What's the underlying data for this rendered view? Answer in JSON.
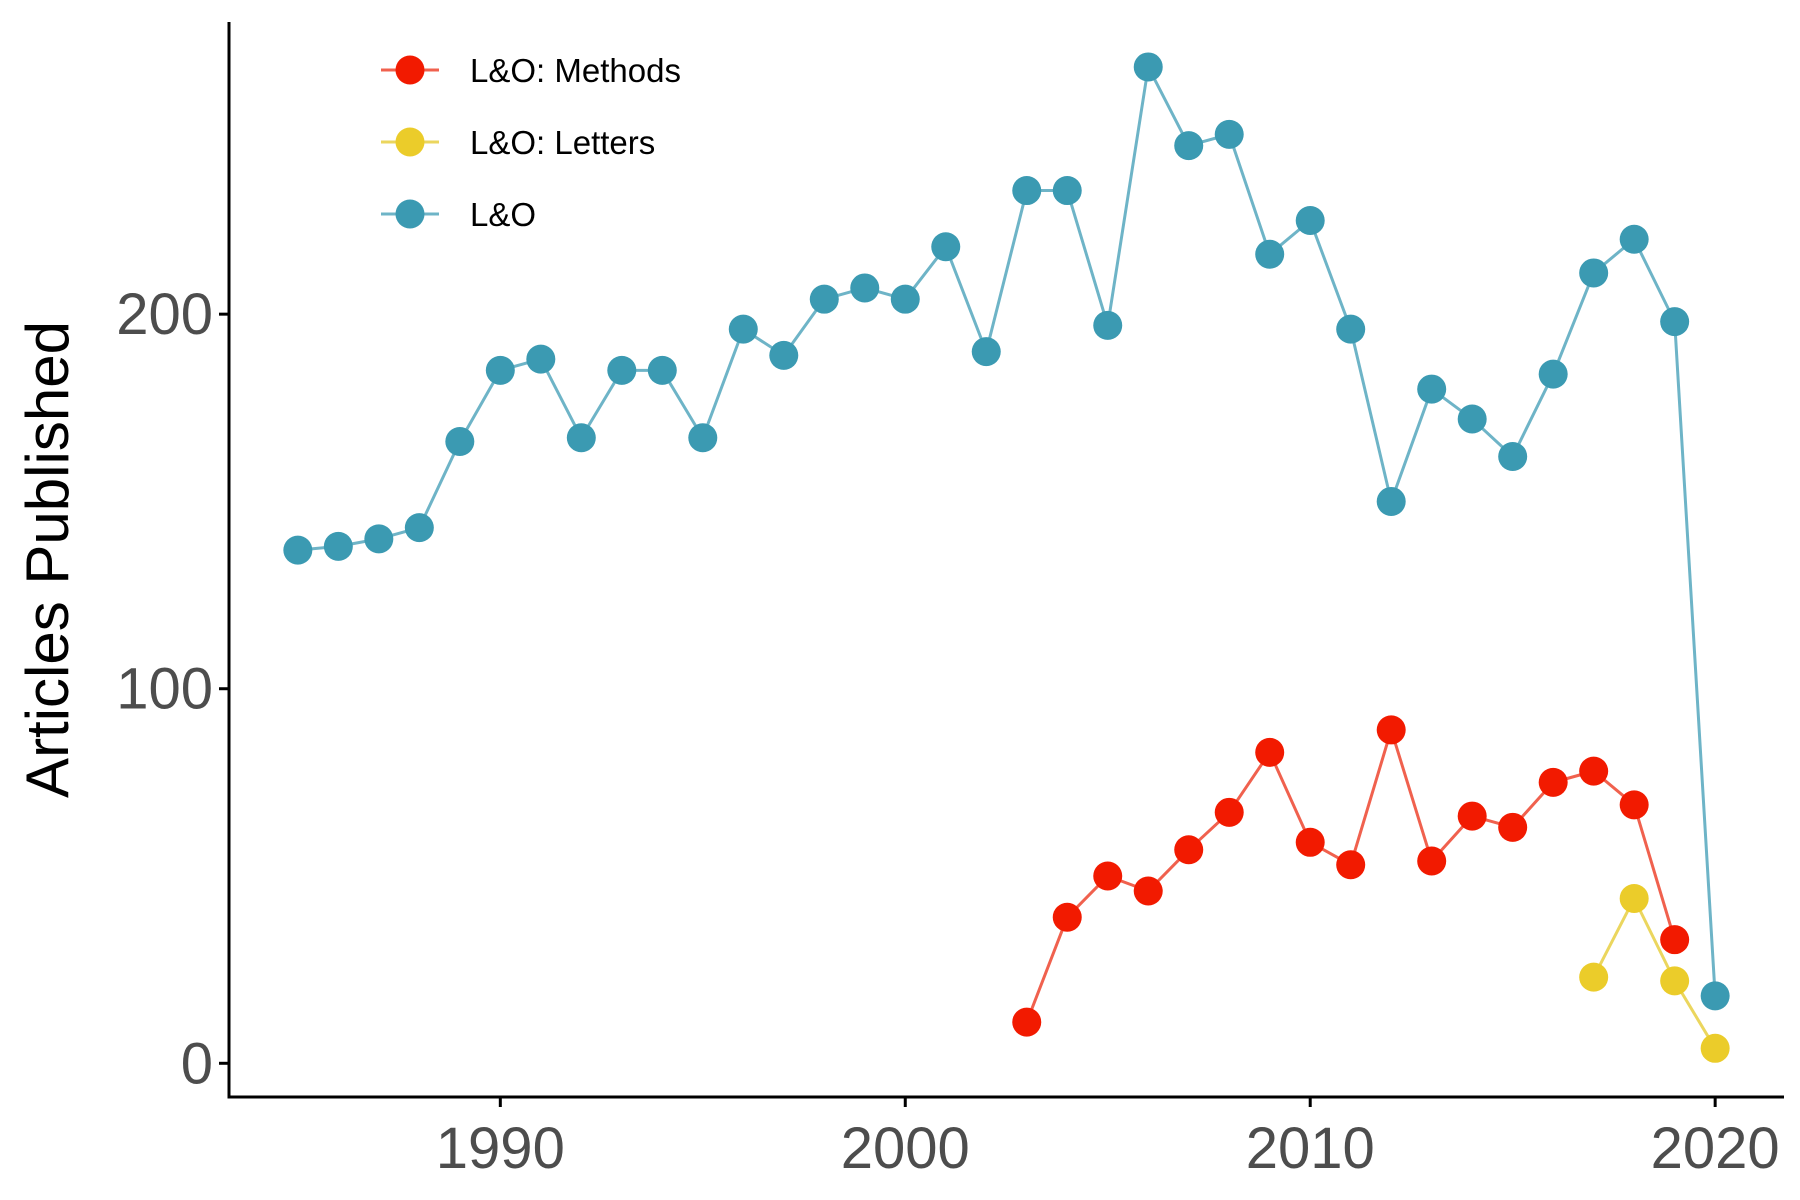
{
  "chart_data": {
    "type": "line",
    "title": "",
    "xlabel": "",
    "ylabel": "Articles Published",
    "xlim": [
      1983.3,
      2021.7
    ],
    "ylim": [
      -9,
      278
    ],
    "x_ticks": [
      1990,
      2000,
      2010,
      2020
    ],
    "y_ticks": [
      0,
      100,
      200
    ],
    "grid": false,
    "legend_position": "top-left",
    "series": [
      {
        "name": "L&O: Methods",
        "color": "#F21A00",
        "line_color": "#F0614E",
        "x": [
          2003,
          2004,
          2005,
          2006,
          2007,
          2008,
          2009,
          2010,
          2011,
          2012,
          2013,
          2014,
          2015,
          2016,
          2017,
          2018,
          2019
        ],
        "y": [
          11,
          39,
          50,
          46,
          57,
          67,
          83,
          59,
          53,
          89,
          54,
          66,
          63,
          75,
          78,
          69,
          33
        ]
      },
      {
        "name": "L&O: Letters",
        "color": "#EBCC2A",
        "line_color": "#EBD65E",
        "x": [
          2017,
          2018,
          2019,
          2020
        ],
        "y": [
          23,
          44,
          22,
          4
        ]
      },
      {
        "name": "L&O",
        "color": "#3B9AB2",
        "line_color": "#6EB4C7",
        "x": [
          1985,
          1986,
          1987,
          1988,
          1989,
          1990,
          1991,
          1992,
          1993,
          1994,
          1995,
          1996,
          1997,
          1998,
          1999,
          2000,
          2001,
          2002,
          2003,
          2004,
          2005,
          2006,
          2007,
          2008,
          2009,
          2010,
          2011,
          2012,
          2013,
          2014,
          2015,
          2016,
          2017,
          2018,
          2019,
          2020
        ],
        "y": [
          137,
          138,
          140,
          143,
          166,
          185,
          188,
          167,
          185,
          185,
          167,
          196,
          189,
          204,
          207,
          204,
          218,
          190,
          233,
          233,
          197,
          266,
          245,
          248,
          216,
          225,
          196,
          150,
          180,
          172,
          162,
          184,
          211,
          220,
          198,
          18
        ]
      }
    ]
  }
}
